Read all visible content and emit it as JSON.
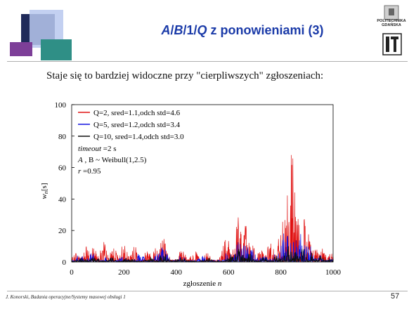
{
  "slide": {
    "title_parts": [
      "A",
      "/",
      "B",
      "/1/",
      "Q",
      " z ponowieniami (3)"
    ],
    "subtitle": "Staje się to bardziej widoczne przy \"cierpliwszych\" zgłoszeniach:",
    "footer": "J. Konorski, Badania operacyjne/Systemy masowej obsługi 1",
    "page_number": "57",
    "logo_text_1": "POLITECHNIKA",
    "logo_text_2": "GDAŃSKA"
  },
  "chart_data": {
    "type": "line",
    "xlabel_main": "zgłoszenie",
    "xlabel_var": "n",
    "ylabel_main": "w",
    "ylabel_sub": "n",
    "ylabel_unit": "[s]",
    "xlim": [
      0,
      1000
    ],
    "ylim": [
      0,
      100
    ],
    "xticks": [
      0,
      200,
      400,
      600,
      800,
      1000
    ],
    "yticks": [
      0,
      20,
      40,
      60,
      80,
      100
    ],
    "legend_position": "top-left",
    "series": [
      {
        "name": "Q=2, sred=1.1,odch std=4.6",
        "color": "#e01010"
      },
      {
        "name": "Q=5, sred=1.2,odch std=3.4",
        "color": "#1010e0"
      },
      {
        "name": "Q=10, sred=1.4,odch std=3.0",
        "color": "#101010"
      }
    ],
    "annotations": [
      {
        "italic": "timeout",
        "rest": " =2 s"
      },
      {
        "italic": "A",
        "rest": " , B ~  Weibull(1,2.5)"
      },
      {
        "italic": "r",
        "rest": " =0.95"
      }
    ],
    "highlights": {
      "red_peaks": [
        [
          20,
          7
        ],
        [
          55,
          10
        ],
        [
          90,
          12
        ],
        [
          120,
          13
        ],
        [
          160,
          9
        ],
        [
          200,
          12
        ],
        [
          240,
          10
        ],
        [
          290,
          8
        ],
        [
          330,
          14
        ],
        [
          350,
          16
        ],
        [
          420,
          8
        ],
        [
          470,
          7
        ],
        [
          520,
          6
        ],
        [
          590,
          17
        ],
        [
          640,
          30
        ],
        [
          665,
          25
        ],
        [
          690,
          13
        ],
        [
          720,
          9
        ],
        [
          760,
          12
        ],
        [
          805,
          28
        ],
        [
          825,
          49
        ],
        [
          840,
          80
        ],
        [
          855,
          43
        ],
        [
          880,
          37
        ],
        [
          905,
          18
        ],
        [
          930,
          10
        ],
        [
          960,
          9
        ],
        [
          990,
          6
        ]
      ],
      "blue_peaks": [
        [
          30,
          5
        ],
        [
          80,
          6
        ],
        [
          140,
          4
        ],
        [
          200,
          5
        ],
        [
          260,
          6
        ],
        [
          330,
          6
        ],
        [
          350,
          10
        ],
        [
          420,
          5
        ],
        [
          500,
          4
        ],
        [
          600,
          8
        ],
        [
          640,
          15
        ],
        [
          665,
          12
        ],
        [
          690,
          8
        ],
        [
          730,
          6
        ],
        [
          780,
          8
        ],
        [
          815,
          20
        ],
        [
          835,
          24
        ],
        [
          860,
          18
        ],
        [
          880,
          20
        ],
        [
          905,
          12
        ],
        [
          940,
          6
        ],
        [
          990,
          3
        ]
      ],
      "black_peaks": [
        [
          40,
          3
        ],
        [
          90,
          4
        ],
        [
          150,
          3
        ],
        [
          220,
          4
        ],
        [
          300,
          3
        ],
        [
          350,
          6
        ],
        [
          420,
          3
        ],
        [
          520,
          3
        ],
        [
          610,
          5
        ],
        [
          640,
          9
        ],
        [
          680,
          6
        ],
        [
          740,
          4
        ],
        [
          790,
          5
        ],
        [
          830,
          10
        ],
        [
          860,
          9
        ],
        [
          885,
          10
        ],
        [
          910,
          7
        ],
        [
          950,
          4
        ],
        [
          990,
          2
        ]
      ]
    }
  }
}
